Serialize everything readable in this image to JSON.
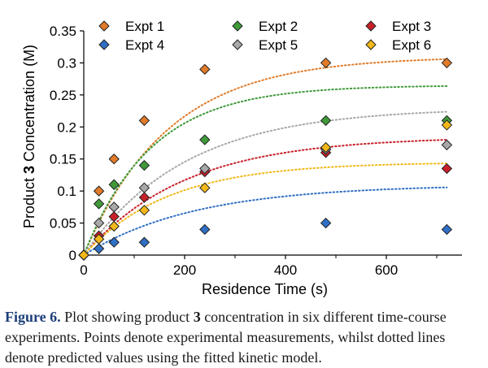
{
  "chart_data": {
    "type": "scatter",
    "xlabel": "Residence Time (s)",
    "ylabel_prefix": "Product ",
    "ylabel_bold": "3",
    "ylabel_suffix": " Concentration (M)",
    "xlim": [
      0,
      750
    ],
    "ylim": [
      0,
      0.35
    ],
    "xticks": [
      0,
      200,
      400,
      600
    ],
    "yticks": [
      0,
      0.05,
      0.1,
      0.15,
      0.2,
      0.25,
      0.3,
      0.35
    ],
    "ytick_labels": [
      "0",
      "0.05",
      "0.1",
      "0.15",
      "0.2",
      "0.25",
      "0.3",
      "0.35"
    ],
    "legend_position": "top",
    "series": [
      {
        "name": "Expt 1",
        "color": "#e07b2a",
        "x": [
          0,
          30,
          60,
          120,
          240,
          480,
          720
        ],
        "y": [
          0,
          0.1,
          0.15,
          0.21,
          0.29,
          0.3,
          0.3
        ],
        "fit_max": 0.31,
        "fit_rate": 0.006
      },
      {
        "name": "Expt 2",
        "color": "#3f9a3a",
        "x": [
          0,
          30,
          60,
          120,
          240,
          480,
          720
        ],
        "y": [
          0,
          0.08,
          0.11,
          0.14,
          0.18,
          0.21,
          0.21
        ],
        "fit_max": 0.265,
        "fit_rate": 0.0075
      },
      {
        "name": "Expt 3",
        "color": "#c8202a",
        "x": [
          0,
          30,
          60,
          120,
          240,
          480,
          720
        ],
        "y": [
          0,
          0.03,
          0.06,
          0.09,
          0.13,
          0.16,
          0.135
        ],
        "fit_max": 0.185,
        "fit_rate": 0.005
      },
      {
        "name": "Expt 4",
        "color": "#2f6fc4",
        "x": [
          0,
          30,
          60,
          120,
          240,
          480,
          720
        ],
        "y": [
          0,
          0.01,
          0.02,
          0.02,
          0.04,
          0.05,
          0.04
        ],
        "fit_max": 0.11,
        "fit_rate": 0.0045
      },
      {
        "name": "Expt 5",
        "color": "#a8a8a8",
        "x": [
          0,
          30,
          60,
          120,
          240,
          480,
          720
        ],
        "y": [
          0,
          0.05,
          0.075,
          0.105,
          0.135,
          0.165,
          0.172
        ],
        "fit_max": 0.23,
        "fit_rate": 0.005
      },
      {
        "name": "Expt 6",
        "color": "#f2b81a",
        "x": [
          0,
          30,
          60,
          120,
          240,
          480,
          720
        ],
        "y": [
          0,
          0.025,
          0.045,
          0.07,
          0.105,
          0.168,
          0.203
        ],
        "fit_max": 0.145,
        "fit_rate": 0.006
      }
    ]
  },
  "caption": {
    "label": "Figure 6.",
    "text_1": " Plot showing product ",
    "bold_num": "3",
    "text_2": " concentration in six different time-course experiments. Points denote experimental measurements, whilst dotted lines denote predicted values using the fitted kinetic model."
  }
}
